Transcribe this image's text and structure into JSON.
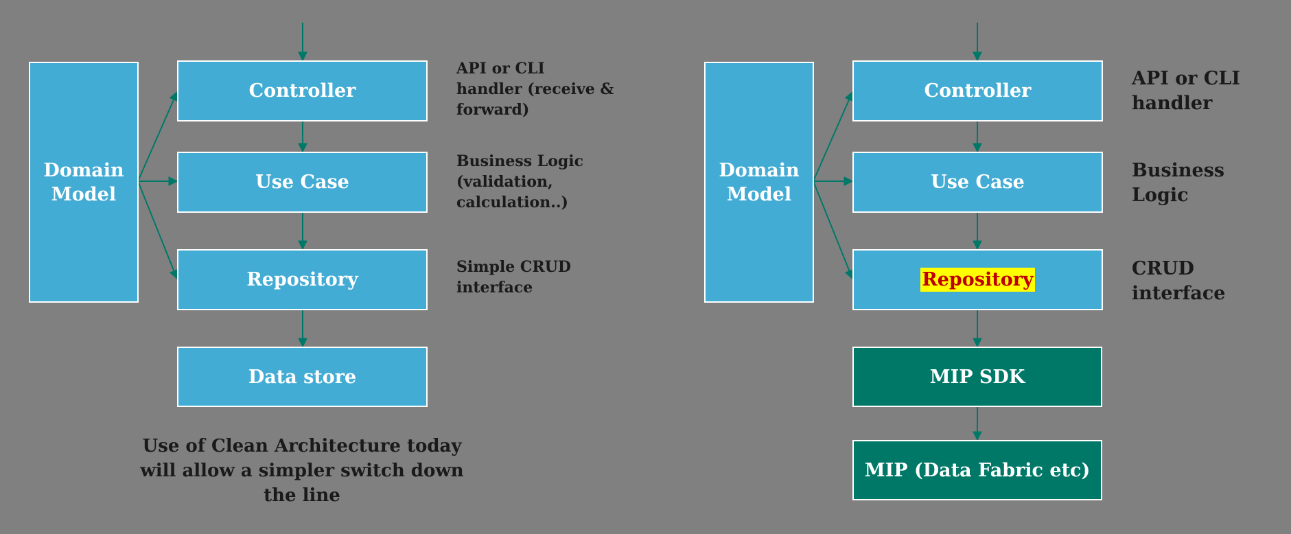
{
  "left_diagram": {
    "domain_model": "Domain Model",
    "controller": "Controller",
    "use_case": "Use Case",
    "repository": "Repository",
    "data_store": "Data store",
    "notes": {
      "controller": "API or CLI handler (receive &  forward)",
      "use_case": "Business Logic (validation, calculation..)",
      "repository": "Simple CRUD interface"
    },
    "caption": "Use of Clean Architecture today will allow a simpler switch down the line"
  },
  "right_diagram": {
    "domain_model": "Domain Model",
    "controller": "Controller",
    "use_case": "Use Case",
    "repository": "Repository",
    "mip_sdk": "MIP SDK",
    "mip": "MIP (Data Fabric etc)",
    "notes": {
      "controller": "API or CLI handler",
      "use_case": "Business Logic",
      "repository": "CRUD interface"
    }
  },
  "colors": {
    "background": "#808080",
    "box_blue": "#43acd4",
    "box_teal": "#007868",
    "arrow": "#007868",
    "highlight_bg": "#ffff00",
    "highlight_text": "#c00000"
  }
}
